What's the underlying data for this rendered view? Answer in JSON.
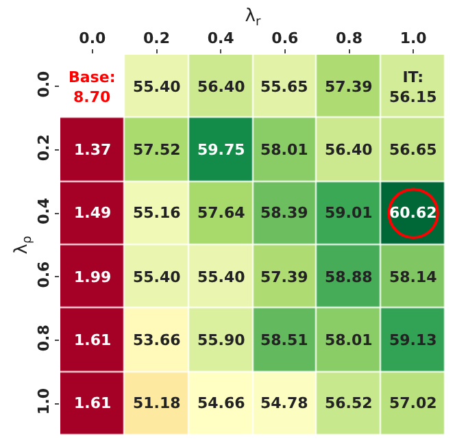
{
  "chart_data": {
    "type": "heatmap",
    "xlabel": "λ$_{r}$",
    "ylabel": "λ$_{ρ}$",
    "categories": [
      "0.0",
      "0.2",
      "0.4",
      "0.6",
      "0.8",
      "1.0"
    ],
    "y_categories": [
      "0.0",
      "0.2",
      "0.4",
      "0.6",
      "0.8",
      "1.0"
    ],
    "cells": [
      [
        null,
        55.4,
        56.4,
        55.65,
        57.39,
        56.15
      ],
      [
        1.37,
        57.52,
        59.75,
        58.01,
        56.4,
        56.65
      ],
      [
        1.49,
        55.16,
        57.64,
        58.39,
        59.01,
        60.62
      ],
      [
        1.99,
        55.4,
        55.4,
        57.39,
        58.88,
        58.14
      ],
      [
        1.61,
        53.66,
        55.9,
        58.51,
        58.01,
        59.13
      ],
      [
        1.61,
        51.18,
        54.66,
        54.78,
        56.52,
        57.02
      ]
    ],
    "cell_labels": [
      [
        "Base:\n8.70",
        "55.40",
        "56.40",
        "55.65",
        "57.39",
        "IT:\n56.15"
      ],
      [
        "1.37",
        "57.52",
        "59.75",
        "58.01",
        "56.40",
        "56.65"
      ],
      [
        "1.49",
        "55.16",
        "57.64",
        "58.39",
        "59.01",
        "60.62"
      ],
      [
        "1.99",
        "55.40",
        "55.40",
        "57.39",
        "58.88",
        "58.14"
      ],
      [
        "1.61",
        "53.66",
        "55.90",
        "58.51",
        "58.01",
        "59.13"
      ],
      [
        "1.61",
        "51.18",
        "54.66",
        "54.78",
        "56.52",
        "57.02"
      ]
    ]
  }
}
